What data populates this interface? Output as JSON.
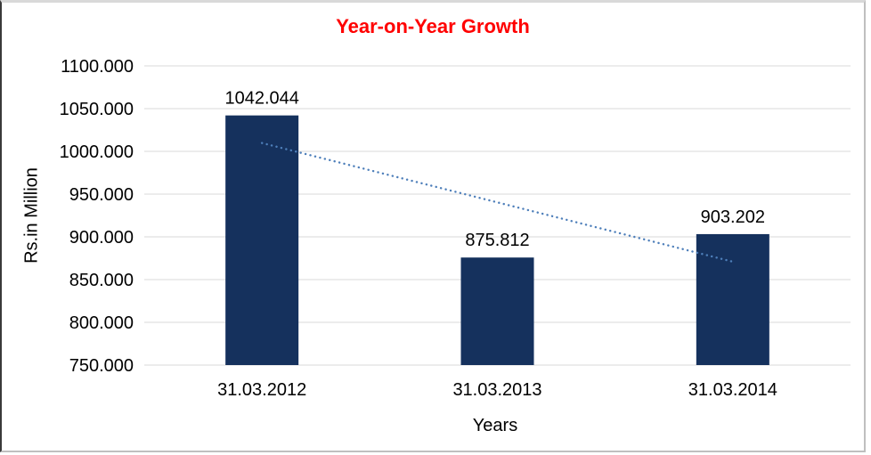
{
  "chart_data": {
    "type": "bar",
    "title": "Year-on-Year Growth",
    "xlabel": "Years",
    "ylabel": "Rs.in Million",
    "categories": [
      "31.03.2012",
      "31.03.2013",
      "31.03.2014"
    ],
    "values": [
      1042.044,
      875.812,
      903.202
    ],
    "data_labels": [
      "1042.044",
      "875.812",
      "903.202"
    ],
    "ylim": [
      750,
      1100
    ],
    "ytick_step": 50,
    "ytick_labels": [
      "750.000",
      "800.000",
      "850.000",
      "900.000",
      "950.000",
      "1000.000",
      "1050.000",
      "1100.000"
    ],
    "grid": true,
    "legend": false,
    "trendline": {
      "type": "linear",
      "style": "dotted"
    },
    "colors": {
      "bar": "#15315D",
      "title": "#FF0000",
      "trendline": "#4E7FBA",
      "gridline": "#D9D9D9",
      "text": "#000000",
      "background": "#FFFFFF"
    }
  }
}
